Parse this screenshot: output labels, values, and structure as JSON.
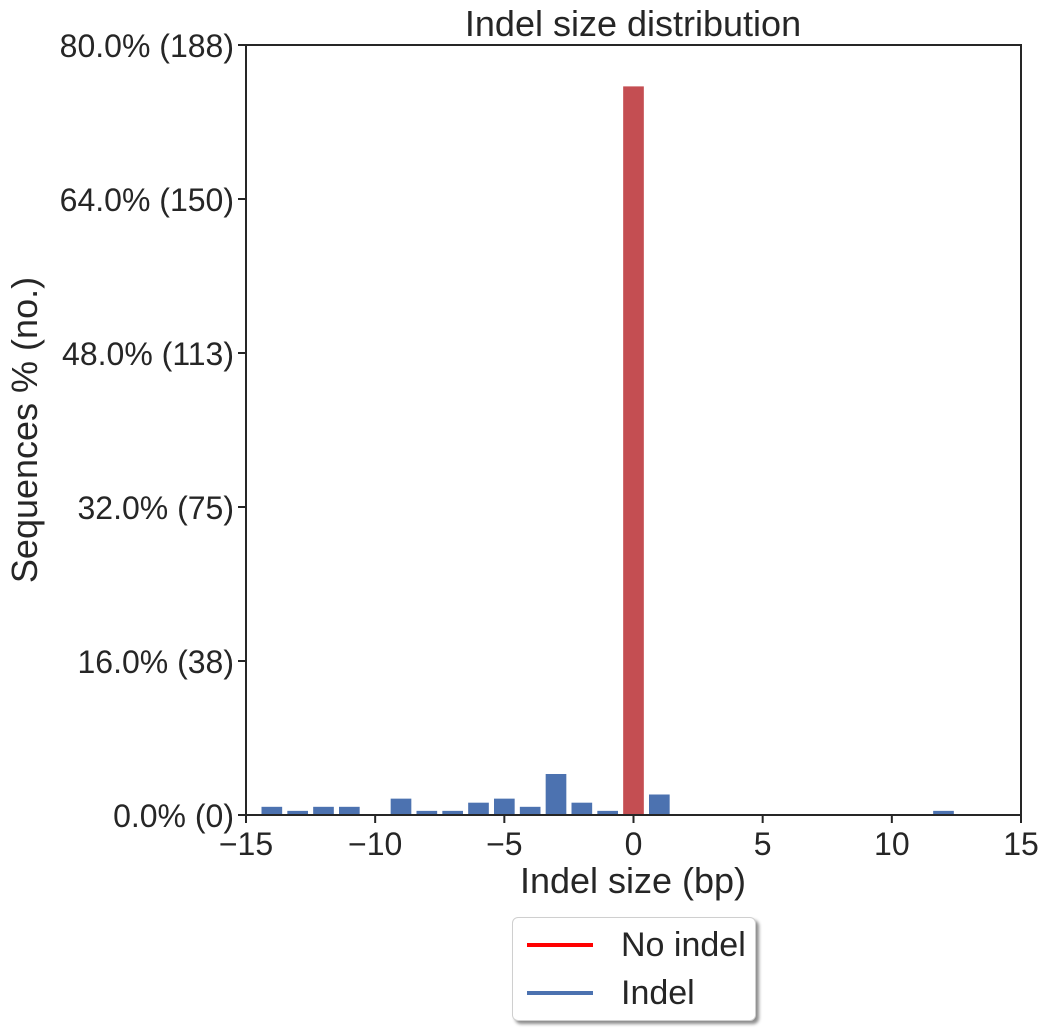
{
  "chart_data": {
    "type": "bar",
    "title": "Indel size distribution",
    "xlabel": "Indel size (bp)",
    "ylabel": "Sequences % (no.)",
    "xlim": [
      -15,
      15
    ],
    "ylim": [
      0,
      80
    ],
    "xticks": [
      -15,
      -10,
      -5,
      0,
      5,
      10,
      15
    ],
    "xtick_labels": [
      "−15",
      "−10",
      "−5",
      "0",
      "5",
      "10",
      "15"
    ],
    "yticks": [
      0,
      16,
      32,
      48,
      64,
      80
    ],
    "ytick_labels": [
      "0.0% (0)",
      "16.0% (38)",
      "32.0% (75)",
      "48.0% (113)",
      "64.0% (150)",
      "80.0% (188)"
    ],
    "series": [
      {
        "name": "Indel",
        "color": "#4C72B0",
        "x": [
          -14,
          -13,
          -12,
          -11,
          -9,
          -8,
          -7,
          -6,
          -5,
          -4,
          -3,
          -2,
          -1,
          1,
          12
        ],
        "values": [
          0.85,
          0.43,
          0.85,
          0.85,
          1.7,
          0.43,
          0.43,
          1.28,
          1.7,
          0.85,
          4.26,
          1.28,
          0.43,
          2.13,
          0.43
        ]
      },
      {
        "name": "No indel",
        "color": "#C44E52",
        "x": [
          0
        ],
        "values": [
          75.7
        ]
      }
    ],
    "legend": {
      "placement": "bottom-center",
      "entries": [
        {
          "label": "No indel",
          "color": "#FF0000"
        },
        {
          "label": "Indel",
          "color": "#4C72B0"
        }
      ]
    },
    "grid": false
  }
}
